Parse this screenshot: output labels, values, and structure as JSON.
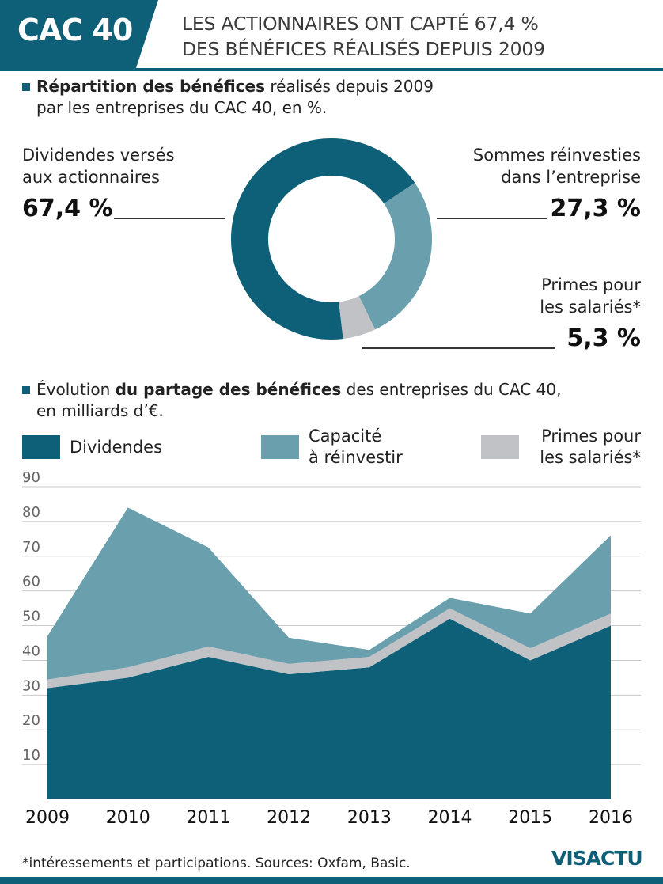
{
  "header": {
    "badge": "CAC 40",
    "headline_line1": "LES ACTIONNAIRES ONT CAPTÉ 67,4 %",
    "headline_line2": "DES BÉNÉFICES RÉALISÉS DEPUIS 2009"
  },
  "section1": {
    "title_bold": "Répartition des bénéfices",
    "title_rest": " réalisés depuis 2009",
    "title_line2": "par les entreprises du CAC 40, en %."
  },
  "section2": {
    "title_pre": "Évolution ",
    "title_bold": "du partage des bénéfices",
    "title_rest": " des entreprises du CAC 40,",
    "title_line2": "en milliards d’€."
  },
  "donut_labels": {
    "dividendes_line1": "Dividendes versés",
    "dividendes_line2": "aux actionnaires",
    "dividendes_value": "67,4 %",
    "reinvest_line1": "Sommes réinvesties",
    "reinvest_line2": "dans l’entreprise",
    "reinvest_value": "27,3 %",
    "primes_line1": "Primes pour",
    "primes_line2": "les salariés*",
    "primes_value": "5,3 %"
  },
  "legend": {
    "dividendes": "Dividendes",
    "capacite_line1": "Capacité",
    "capacite_line2": "à réinvestir",
    "primes_line1": "Primes pour",
    "primes_line2": "les salariés*"
  },
  "colors": {
    "dividendes": "#0e5f78",
    "capacite": "#6a9fae",
    "primes": "#c0c2c5",
    "accent": "#0e5f78"
  },
  "chart_data": [
    {
      "type": "pie",
      "categories": [
        "Dividendes versés aux actionnaires",
        "Sommes réinvesties dans l’entreprise",
        "Primes pour les salariés*"
      ],
      "values": [
        67.4,
        27.3,
        5.3
      ]
    },
    {
      "type": "area",
      "stacked": true,
      "x": [
        "2009",
        "2010",
        "2011",
        "2012",
        "2013",
        "2014",
        "2015",
        "2016"
      ],
      "series": [
        {
          "name": "Dividendes",
          "values": [
            32,
            35,
            41,
            36,
            38,
            52,
            40,
            50
          ]
        },
        {
          "name": "Primes pour les salariés*",
          "values": [
            2.5,
            3,
            3,
            3,
            3,
            3,
            3.5,
            3.5
          ]
        },
        {
          "name": "Capacité à réinvestir",
          "values": [
            12.5,
            46,
            28.5,
            7.5,
            2,
            3,
            10,
            22.5
          ]
        }
      ],
      "yticks": [
        "10",
        "20",
        "30",
        "40",
        "50",
        "60",
        "70",
        "80",
        "90"
      ],
      "ylim": [
        0,
        90
      ],
      "grid": true
    }
  ],
  "footer": {
    "note": "*intéressements et participations. Sources: Oxfam, Basic.",
    "logo": "VISACTU"
  }
}
